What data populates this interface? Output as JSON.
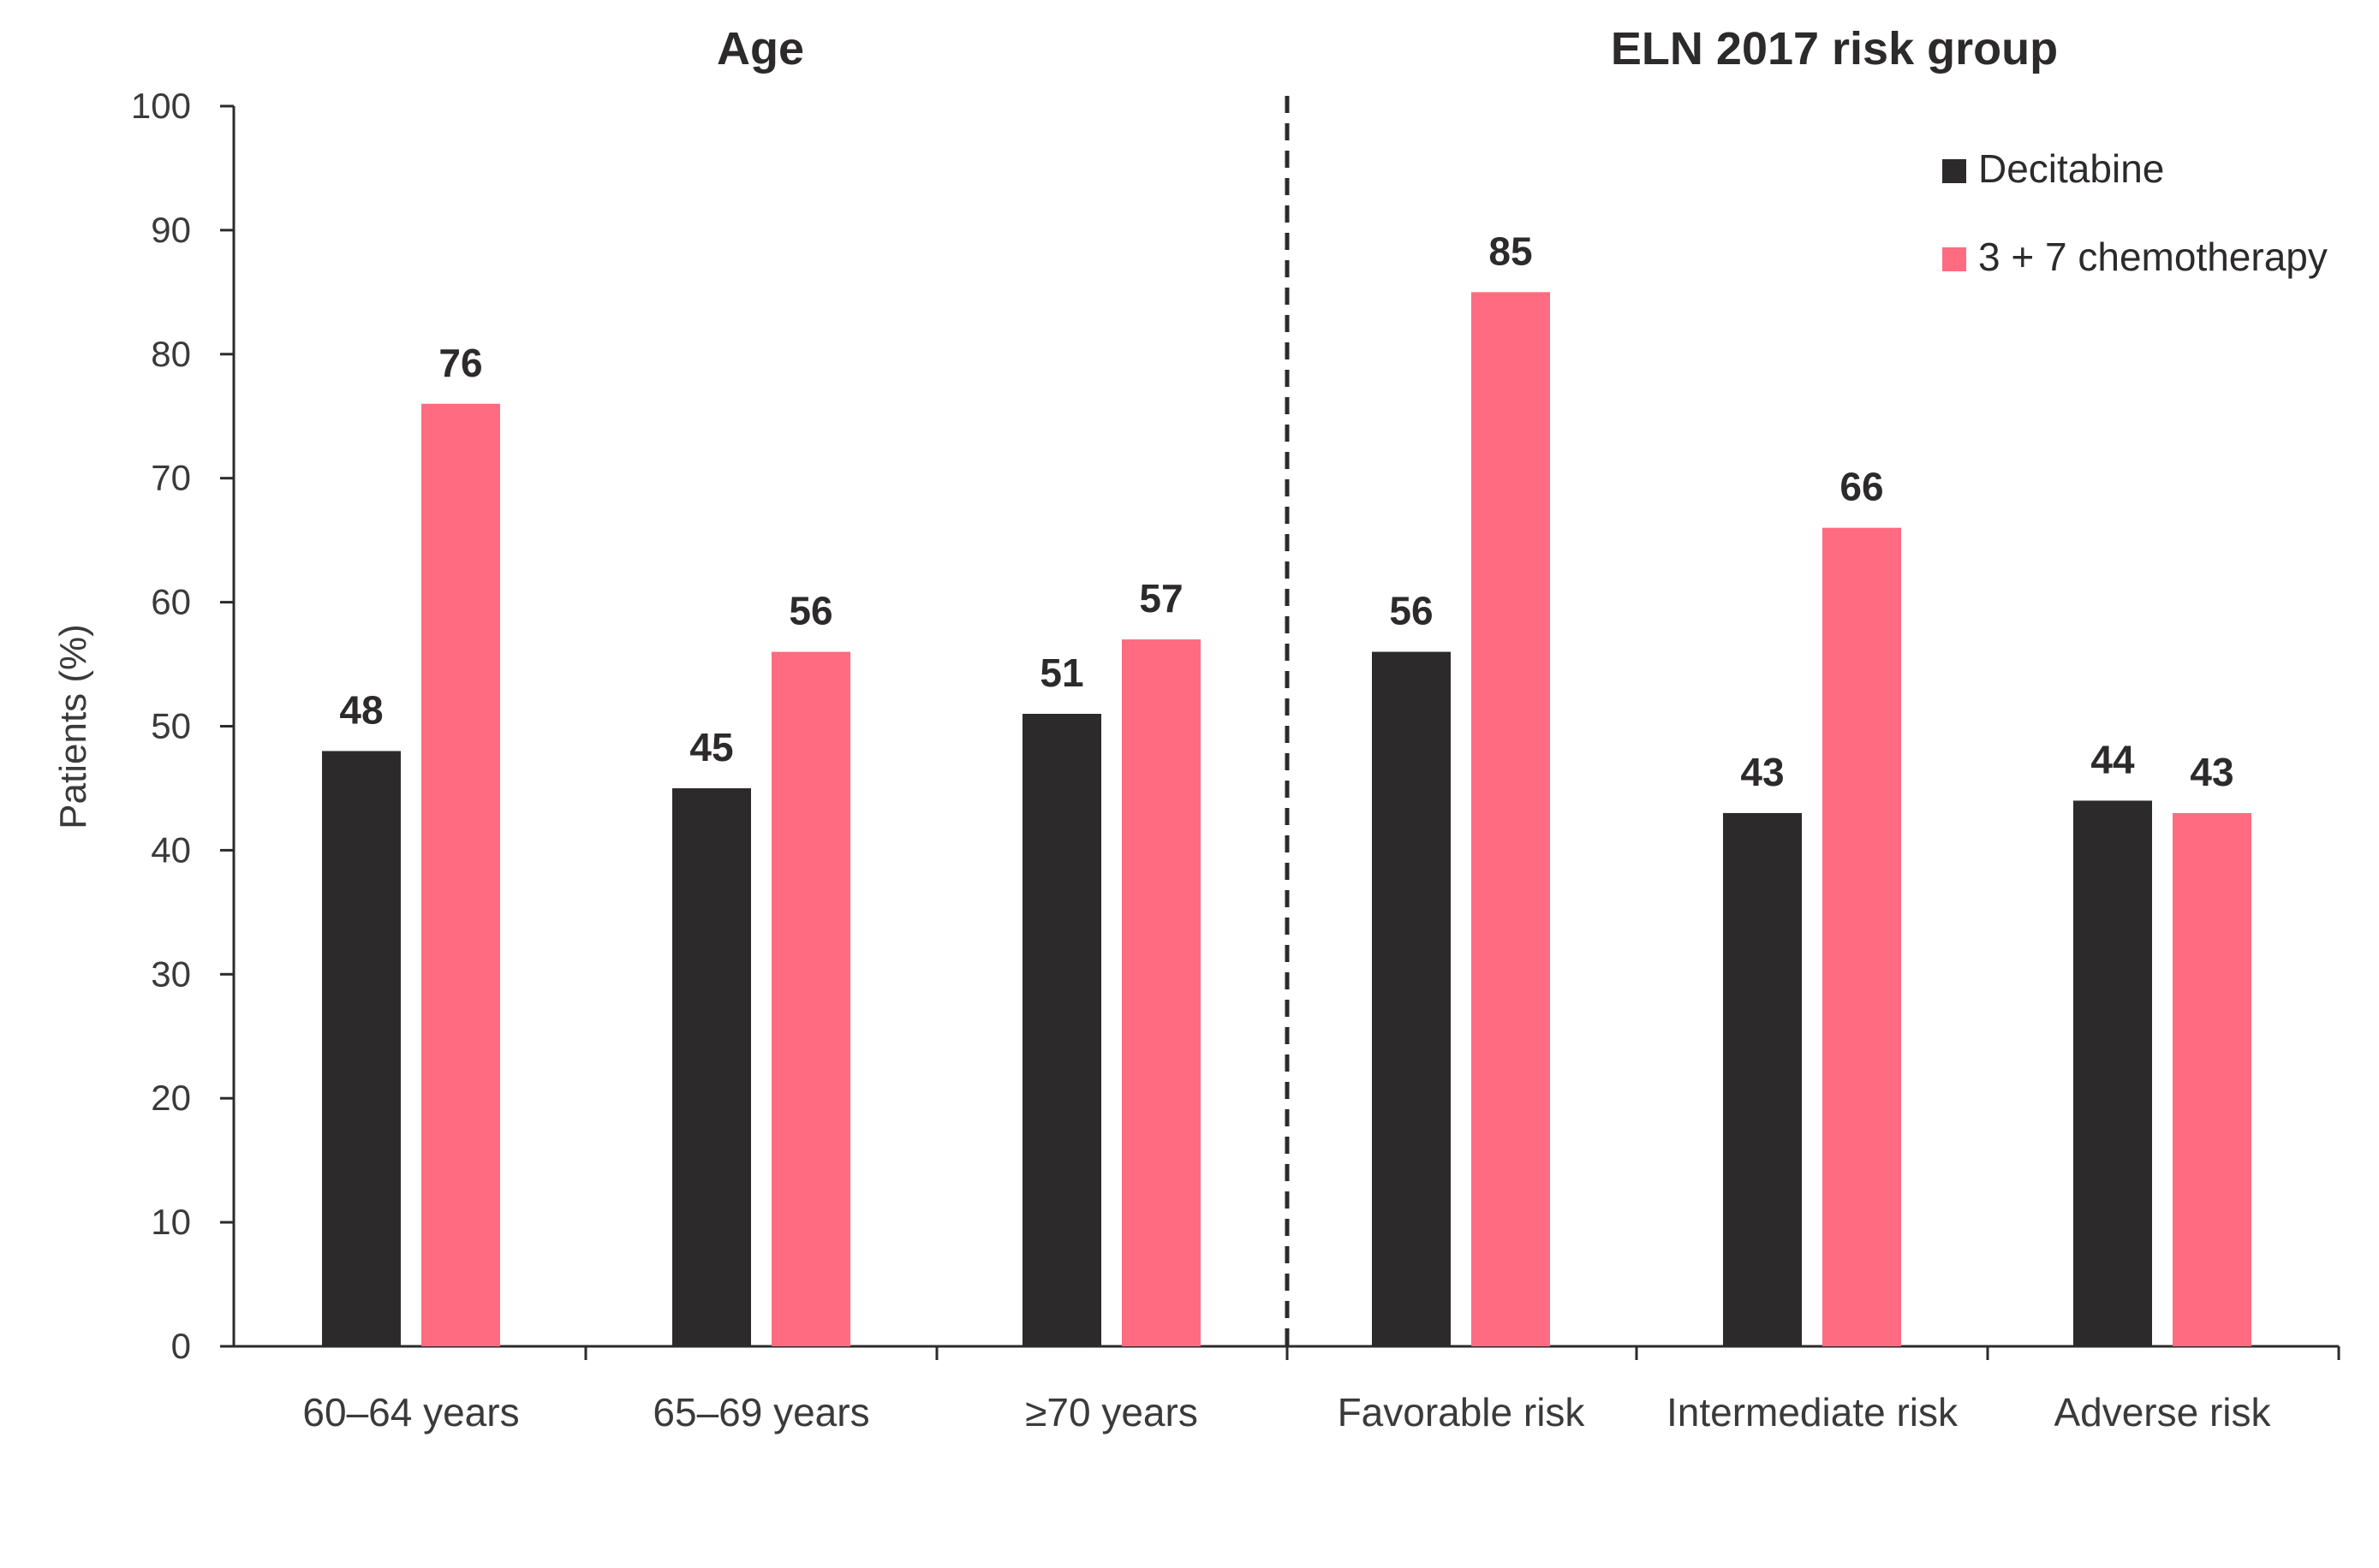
{
  "chart_data": {
    "type": "bar",
    "ylabel": "Patients (%)",
    "xlabel": "",
    "ylim": [
      0,
      100
    ],
    "yticks": [
      0,
      10,
      20,
      30,
      40,
      50,
      60,
      70,
      80,
      90,
      100
    ],
    "grid": false,
    "legend_position": "top-right",
    "groups": [
      {
        "title": "Age",
        "categories": [
          "60–64 years",
          "65–69 years",
          "≥70 years"
        ]
      },
      {
        "title": "ELN 2017 risk group",
        "categories": [
          "Favorable risk",
          "Intermediate risk",
          "Adverse risk"
        ]
      }
    ],
    "categories": [
      "60–64 years",
      "65–69 years",
      "≥70 years",
      "Favorable risk",
      "Intermediate risk",
      "Adverse risk"
    ],
    "series": [
      {
        "name": "Decitabine",
        "color": "#2d2a2b",
        "values": [
          48,
          45,
          51,
          56,
          43,
          44
        ]
      },
      {
        "name": "3 + 7 chemotherapy",
        "color": "#ff6b81",
        "values": [
          76,
          56,
          57,
          85,
          66,
          43
        ]
      }
    ],
    "data_labels": true,
    "divider": "dashed vertical line between the Age and ELN 2017 risk group sections"
  }
}
